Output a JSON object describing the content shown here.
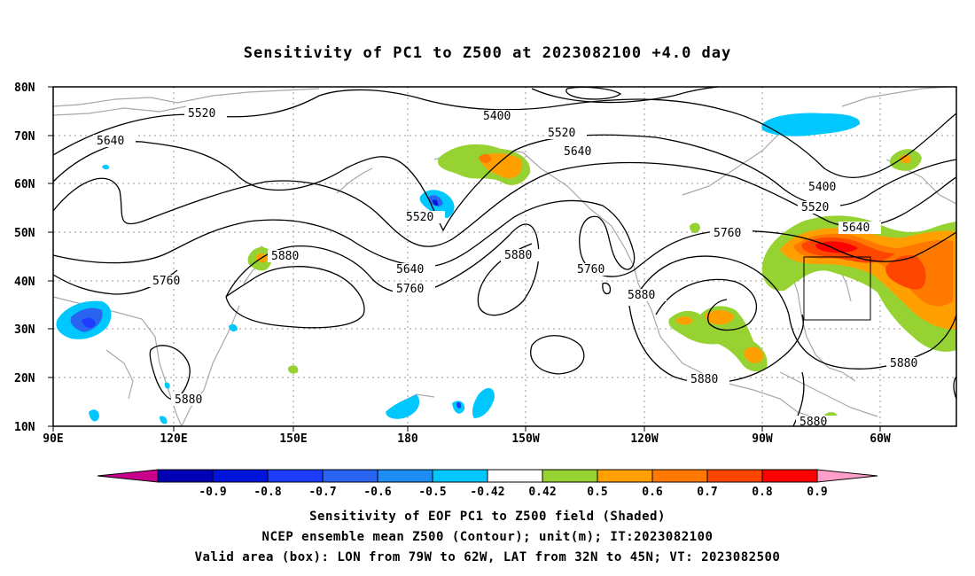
{
  "title": "Sensitivity of PC1 to Z500 at 2023082100 +4.0 day",
  "axes": {
    "lat_labels": [
      "80N",
      "70N",
      "60N",
      "50N",
      "40N",
      "30N",
      "20N",
      "10N"
    ],
    "lon_labels": [
      "90E",
      "120E",
      "150E",
      "180",
      "150W",
      "120W",
      "90W",
      "60W"
    ]
  },
  "contour_labels": {
    "c5520a": "5520",
    "c5400a": "5400",
    "c5640a": "5640",
    "c5520b": "5520",
    "c5640b": "5640",
    "c5520c": "5520",
    "c5880a": "5880",
    "c5760a": "5760",
    "c5640c": "5640",
    "c5760b": "5760",
    "c5880b": "5880",
    "c5760c": "5760",
    "c5880c": "5880",
    "c5760d": "5760",
    "c5400b": "5400",
    "c5520d": "5520",
    "c5640d": "5640",
    "c5880d": "5880",
    "c5880e": "5880",
    "c5880f": "5880",
    "c5880g": "5880"
  },
  "colorbar": {
    "labels": [
      "-0.9",
      "-0.8",
      "-0.7",
      "-0.6",
      "-0.5",
      "-0.42",
      "0.42",
      "0.5",
      "0.6",
      "0.7",
      "0.8",
      "0.9"
    ],
    "colors": [
      "#c8008c",
      "#0000b4",
      "#0014dc",
      "#1e3cff",
      "#2864f0",
      "#1e8cf5",
      "#00c8ff",
      "#ffffff",
      "#96d232",
      "#ffa000",
      "#ff7800",
      "#ff4600",
      "#ff0000",
      "#ff9ec8"
    ]
  },
  "footer": {
    "line1": "Sensitivity of EOF PC1 to Z500 field (Shaded)",
    "line2": "NCEP ensemble mean Z500 (Contour); unit(m); IT:2023082100",
    "line3": "Valid area (box): LON from 79W to 62W, LAT from 32N to 45N; VT: 2023082500"
  }
}
